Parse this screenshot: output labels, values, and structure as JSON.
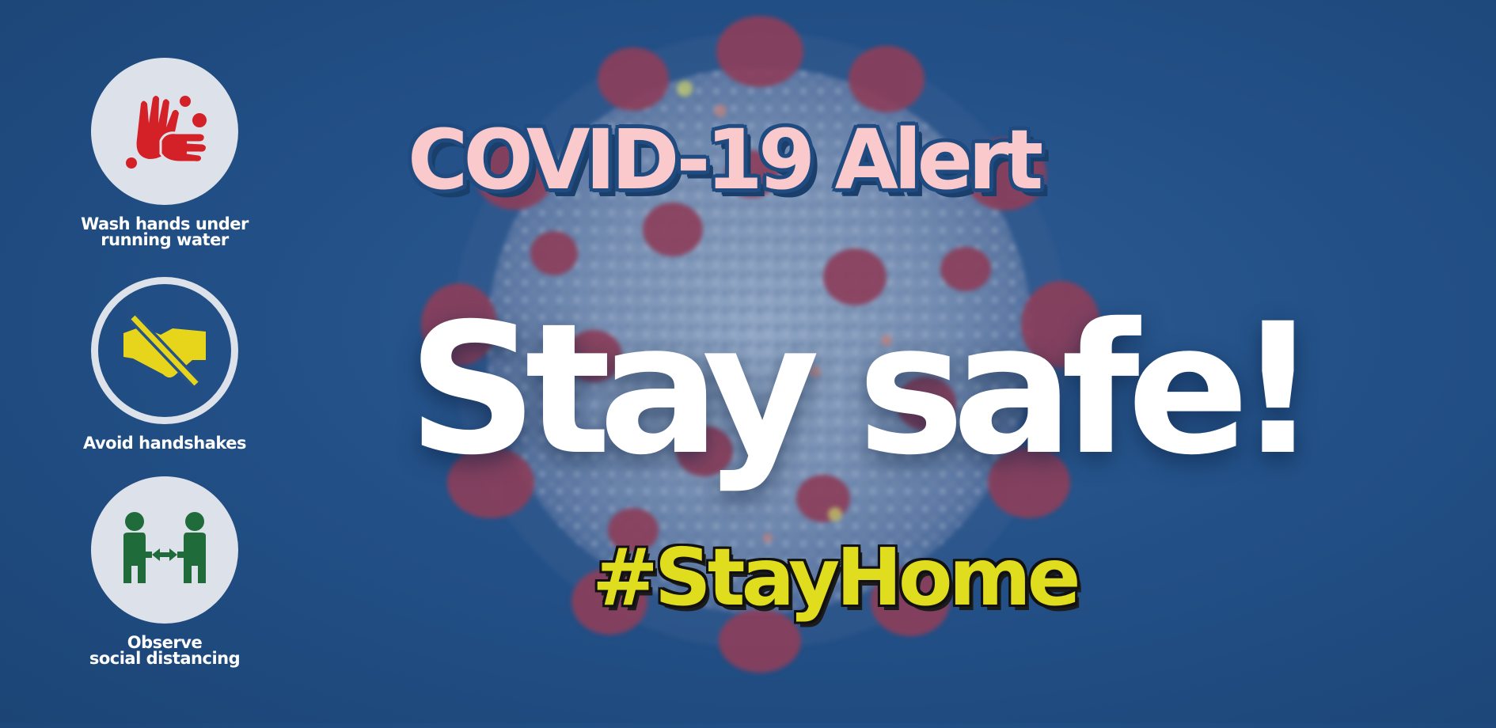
{
  "banner": {
    "title": "COVID-19 Alert",
    "headline": "Stay safe!",
    "hashtag": "#StayHome"
  },
  "tips": [
    {
      "label": "Wash hands under\nrunning water",
      "icon": "washing-hands-icon",
      "color": "#d42027"
    },
    {
      "label": "Avoid handshakes",
      "icon": "no-handshake-icon",
      "color": "#e6d51a"
    },
    {
      "label": "Observe\nsocial distancing",
      "icon": "social-distancing-icon",
      "color": "#1f6b3a"
    }
  ],
  "colors": {
    "background": "#245289",
    "title": "#f9c9cc",
    "headline": "#ffffff",
    "hashtag": "#e0dc1e"
  }
}
